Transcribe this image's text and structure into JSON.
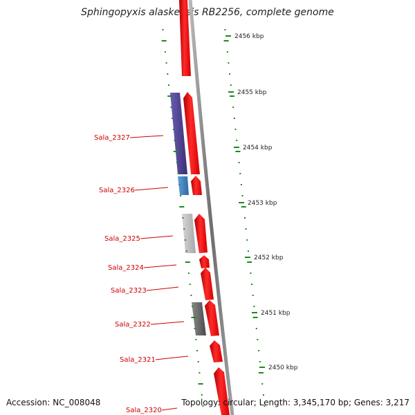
{
  "title": "Sphingopyxis alaskensis RB2256, complete genome",
  "accession": "Accession: NC_008048",
  "summary": "Topology: circular; Length: 3,345,170 bp; Genes: 3,217",
  "kbp_labels": [
    "2456 kbp",
    "2455 kbp",
    "2454 kbp",
    "2453 kbp",
    "2452 kbp",
    "2451 kbp",
    "2450 kbp"
  ],
  "gene_labels": [
    "Sala_2327",
    "Sala_2326",
    "Sala_2325",
    "Sala_2324",
    "Sala_2323",
    "Sala_2322",
    "Sala_2321",
    "Sala_2320"
  ],
  "colors": {
    "forward_gene": "#ff0000",
    "backbone": "#8a8a8a",
    "tick": "#1a8a1a",
    "label": "#cc0000",
    "cog_purple": "#4b3f8f",
    "cog_blue": "#3f7fbf",
    "cog_lightgray": "#bdbdbd",
    "cog_darkgray": "#666666"
  }
}
